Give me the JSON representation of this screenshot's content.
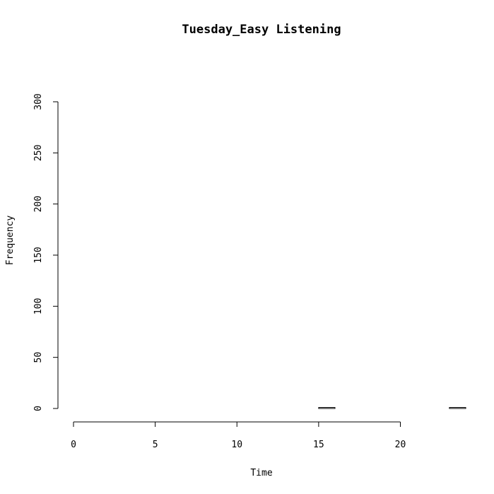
{
  "chart_data": {
    "type": "bar",
    "title": "Tuesday_Easy Listening",
    "xlabel": "Time",
    "ylabel": "Frequency",
    "xlim": [
      0,
      24
    ],
    "ylim": [
      0,
      300
    ],
    "x_ticks": [
      0,
      5,
      10,
      15,
      20
    ],
    "y_ticks": [
      0,
      50,
      100,
      150,
      200,
      250,
      300
    ],
    "bins": [
      {
        "start": 0,
        "end": 1,
        "value": 0
      },
      {
        "start": 1,
        "end": 2,
        "value": 0
      },
      {
        "start": 2,
        "end": 3,
        "value": 0
      },
      {
        "start": 3,
        "end": 4,
        "value": 0
      },
      {
        "start": 4,
        "end": 5,
        "value": 0
      },
      {
        "start": 5,
        "end": 6,
        "value": 0
      },
      {
        "start": 6,
        "end": 7,
        "value": 0
      },
      {
        "start": 7,
        "end": 8,
        "value": 0
      },
      {
        "start": 8,
        "end": 9,
        "value": 0
      },
      {
        "start": 9,
        "end": 10,
        "value": 0
      },
      {
        "start": 10,
        "end": 11,
        "value": 0
      },
      {
        "start": 11,
        "end": 12,
        "value": 0
      },
      {
        "start": 12,
        "end": 13,
        "value": 0
      },
      {
        "start": 13,
        "end": 14,
        "value": 0
      },
      {
        "start": 14,
        "end": 15,
        "value": 0
      },
      {
        "start": 15,
        "end": 16,
        "value": 1
      },
      {
        "start": 16,
        "end": 17,
        "value": 0
      },
      {
        "start": 17,
        "end": 18,
        "value": 0
      },
      {
        "start": 18,
        "end": 19,
        "value": 0
      },
      {
        "start": 19,
        "end": 20,
        "value": 0
      },
      {
        "start": 20,
        "end": 21,
        "value": 0
      },
      {
        "start": 21,
        "end": 22,
        "value": 0
      },
      {
        "start": 22,
        "end": 23,
        "value": 0
      },
      {
        "start": 23,
        "end": 24,
        "value": 1
      }
    ]
  }
}
